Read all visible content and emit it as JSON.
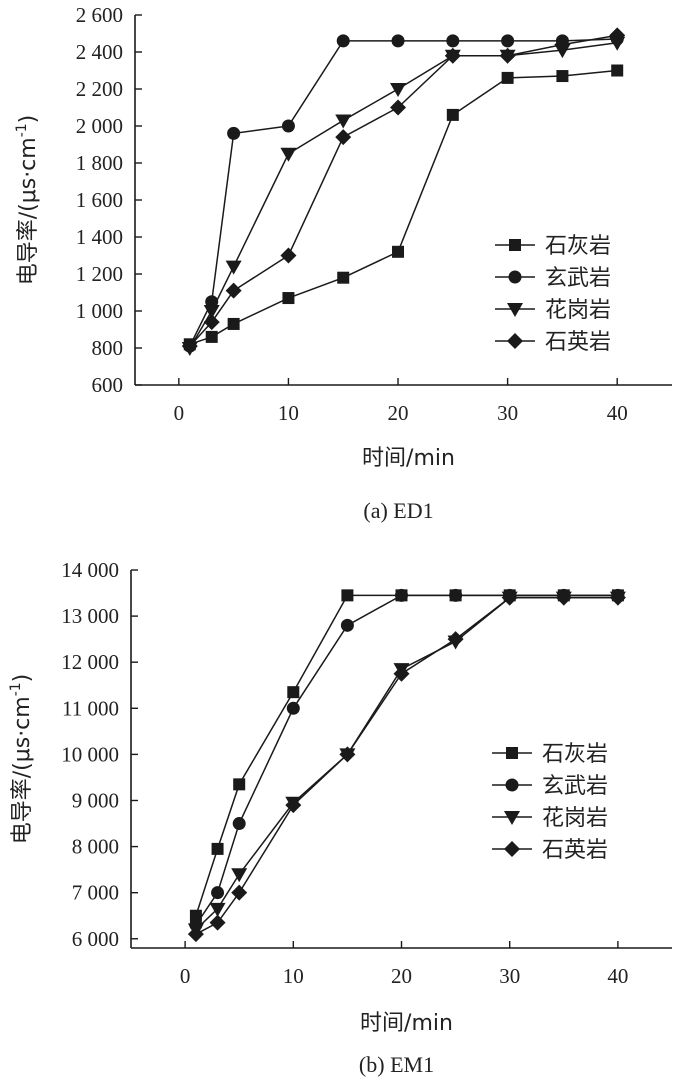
{
  "chart_data": [
    {
      "type": "line",
      "caption": "(a) ED1",
      "title": "",
      "xlabel": "时间/min",
      "ylabel_main": "电导率/(μs·cm",
      "ylabel_sup": "-1",
      "ylabel_close": ")",
      "xlim": [
        -4,
        45
      ],
      "ylim": [
        600,
        2600
      ],
      "xticks": [
        0,
        10,
        20,
        30,
        40
      ],
      "xtick_labels": [
        "0",
        "10",
        "20",
        "30",
        "40"
      ],
      "yticks": [
        600,
        800,
        1000,
        1200,
        1400,
        1600,
        1800,
        2000,
        2200,
        2400,
        2600
      ],
      "ytick_labels": [
        "600",
        "800",
        "1 000",
        "1 200",
        "1 400",
        "1 600",
        "1 800",
        "2 000",
        "2 200",
        "2 400",
        "2 600"
      ],
      "legend_position": "right",
      "series": [
        {
          "name": "石灰岩",
          "marker": "square",
          "x": [
            1,
            3,
            5,
            10,
            15,
            20,
            25,
            30,
            35,
            40
          ],
          "values": [
            820,
            860,
            930,
            1070,
            1180,
            1320,
            2060,
            2260,
            2270,
            2300
          ]
        },
        {
          "name": "玄武岩",
          "marker": "circle",
          "x": [
            1,
            3,
            5,
            10,
            15,
            20,
            25,
            30,
            35,
            40
          ],
          "values": [
            810,
            1050,
            1960,
            2000,
            2460,
            2460,
            2460,
            2460,
            2460,
            2470
          ]
        },
        {
          "name": "花岗岩",
          "marker": "triangle-down",
          "x": [
            1,
            3,
            5,
            10,
            15,
            20,
            25,
            30,
            35,
            40
          ],
          "values": [
            800,
            1000,
            1240,
            1850,
            2030,
            2200,
            2380,
            2380,
            2410,
            2450
          ]
        },
        {
          "name": "石英岩",
          "marker": "diamond",
          "x": [
            1,
            3,
            5,
            10,
            15,
            20,
            25,
            30,
            35,
            40
          ],
          "values": [
            810,
            940,
            1110,
            1300,
            1940,
            2100,
            2380,
            2380,
            2440,
            2490
          ]
        }
      ]
    },
    {
      "type": "line",
      "caption": "(b) EM1",
      "title": "",
      "xlabel": "时间/min",
      "ylabel_main": "电导率/(μs·cm",
      "ylabel_sup": "-1",
      "ylabel_close": ")",
      "xlim": [
        -5,
        45
      ],
      "ylim": [
        5800,
        14000
      ],
      "xticks": [
        0,
        10,
        20,
        30,
        40
      ],
      "xtick_labels": [
        "0",
        "10",
        "20",
        "30",
        "40"
      ],
      "yticks": [
        6000,
        7000,
        8000,
        9000,
        10000,
        11000,
        12000,
        13000,
        14000
      ],
      "ytick_labels": [
        "6 000",
        "7 000",
        "8 000",
        "9 000",
        "10 000",
        "11 000",
        "12 000",
        "13 000",
        "14 000"
      ],
      "legend_position": "right",
      "series": [
        {
          "name": "石灰岩",
          "marker": "square",
          "x": [
            1,
            3,
            5,
            10,
            15,
            20,
            25,
            30,
            35,
            40
          ],
          "values": [
            6500,
            7950,
            9350,
            11350,
            13450,
            13450,
            13450,
            13450,
            13450,
            13450
          ]
        },
        {
          "name": "玄武岩",
          "marker": "circle",
          "x": [
            1,
            3,
            5,
            10,
            15,
            20,
            25,
            30,
            35,
            40
          ],
          "values": [
            6300,
            7000,
            8500,
            11000,
            12800,
            13450,
            13450,
            13450,
            13450,
            13450
          ]
        },
        {
          "name": "花岗岩",
          "marker": "triangle-down",
          "x": [
            1,
            3,
            5,
            10,
            15,
            20,
            25,
            30,
            35,
            40
          ],
          "values": [
            6200,
            6650,
            7400,
            8950,
            10000,
            11850,
            12450,
            13400,
            13400,
            13400
          ]
        },
        {
          "name": "石英岩",
          "marker": "diamond",
          "x": [
            1,
            3,
            5,
            10,
            15,
            20,
            25,
            30,
            35,
            40
          ],
          "values": [
            6100,
            6350,
            7000,
            8900,
            10000,
            11750,
            12500,
            13400,
            13400,
            13400
          ]
        }
      ]
    }
  ]
}
